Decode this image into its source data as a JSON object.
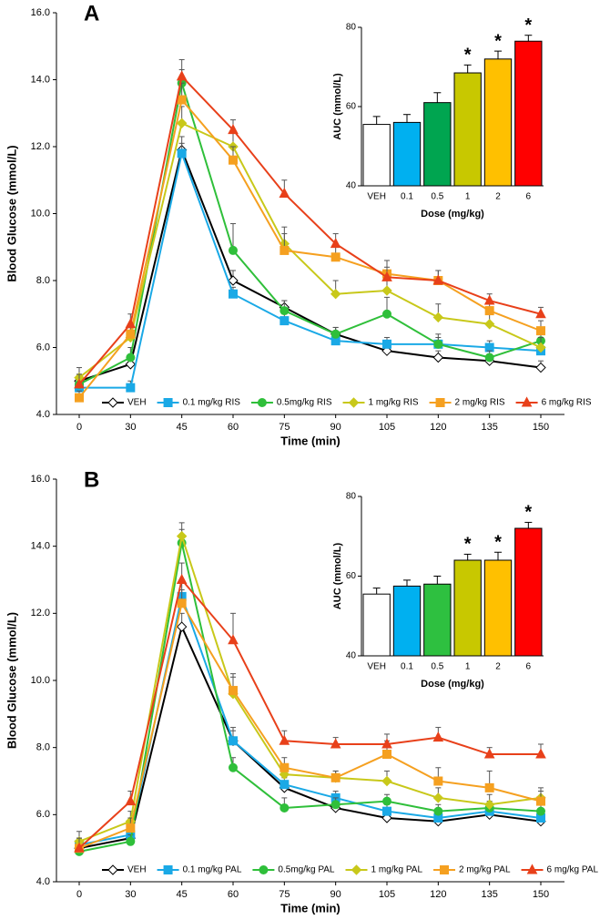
{
  "chart_data": [
    {
      "type": "line",
      "panel_label": "A",
      "ylabel": "Blood Glucose (mmol/L)",
      "xlabel": "Time (min)",
      "categories": [
        "0",
        "30",
        "45",
        "60",
        "75",
        "90",
        "105",
        "120",
        "135",
        "150"
      ],
      "ylim": [
        4,
        16
      ],
      "yticks": [
        {
          "value": 4,
          "label": "4.0"
        },
        {
          "value": 6,
          "label": "6.0"
        },
        {
          "value": 8,
          "label": "8.0"
        },
        {
          "value": 10,
          "label": "10.0"
        },
        {
          "value": 12,
          "label": "12.0"
        },
        {
          "value": 14,
          "label": "14.0"
        },
        {
          "value": 16,
          "label": "16.0"
        }
      ],
      "legend": "bottom",
      "series": [
        {
          "name": "VEH",
          "color": "#000000",
          "fill": "#ffffff",
          "marker": "diamond",
          "values": [
            5.0,
            5.5,
            11.9,
            8.0,
            7.2,
            6.4,
            5.9,
            5.7,
            5.6,
            5.4
          ],
          "errors": [
            0.2,
            0.2,
            0.4,
            0.3,
            0.2,
            0.2,
            0.2,
            0.2,
            0.2,
            0.2
          ]
        },
        {
          "name": "0.1 mg/kg RIS",
          "color": "#1aa9e6",
          "fill": "#1aa9e6",
          "marker": "square",
          "values": [
            4.8,
            4.8,
            11.8,
            7.6,
            6.8,
            6.2,
            6.1,
            6.1,
            6.0,
            5.9
          ],
          "errors": [
            0.2,
            0.2,
            0.3,
            0.2,
            0.2,
            0.2,
            0.2,
            0.2,
            0.2,
            0.2
          ]
        },
        {
          "name": "0.5mg/kg RIS",
          "color": "#2fbf3a",
          "fill": "#2fbf3a",
          "marker": "circle",
          "values": [
            4.9,
            5.7,
            13.9,
            8.9,
            7.1,
            6.4,
            7.0,
            6.1,
            5.7,
            6.2
          ],
          "errors": [
            0.2,
            0.3,
            0.4,
            0.8,
            0.3,
            0.2,
            0.5,
            0.3,
            0.2,
            0.2
          ]
        },
        {
          "name": "1 mg/kg RIS",
          "color": "#c8c81a",
          "fill": "#c8c81a",
          "marker": "diamond",
          "values": [
            5.1,
            6.3,
            12.7,
            12.0,
            9.1,
            7.6,
            7.7,
            6.9,
            6.7,
            6.0
          ],
          "errors": [
            0.3,
            0.3,
            0.5,
            0.5,
            0.5,
            0.4,
            0.4,
            0.4,
            0.3,
            0.3
          ]
        },
        {
          "name": "2 mg/kg RIS",
          "color": "#f5a020",
          "fill": "#f5a020",
          "marker": "square",
          "values": [
            4.5,
            6.4,
            13.4,
            11.6,
            8.9,
            8.7,
            8.2,
            8.0,
            7.1,
            6.5
          ],
          "errors": [
            0.2,
            0.3,
            0.5,
            0.4,
            0.5,
            0.3,
            0.4,
            0.3,
            0.3,
            0.3
          ]
        },
        {
          "name": "6 mg/kg RIS",
          "color": "#e8401a",
          "fill": "#e8401a",
          "marker": "triangle",
          "values": [
            4.9,
            6.7,
            14.1,
            12.5,
            10.6,
            9.1,
            8.1,
            8.0,
            7.4,
            7.0
          ],
          "errors": [
            0.3,
            0.3,
            0.5,
            0.3,
            0.4,
            0.3,
            0.3,
            0.3,
            0.2,
            0.2
          ]
        }
      ]
    },
    {
      "type": "bar",
      "ylabel": "AUC (mmol/L)",
      "xlabel": "Dose (mg/kg)",
      "categories": [
        "VEH",
        "0.1",
        "0.5",
        "1",
        "2",
        "6"
      ],
      "values": [
        55.5,
        56,
        61,
        68.5,
        72,
        76.5
      ],
      "errors": [
        2,
        2,
        2.5,
        2,
        2,
        1.5
      ],
      "colors": [
        "#ffffff",
        "#00b0f0",
        "#00a550",
        "#c8c800",
        "#ffc000",
        "#ff0000"
      ],
      "annotations": [
        null,
        null,
        null,
        "*",
        "*",
        "*"
      ],
      "ylim": [
        40,
        80
      ],
      "yticks": [
        40,
        60,
        80
      ]
    },
    {
      "type": "line",
      "panel_label": "B",
      "ylabel": "Blood Glucose (mmol/L)",
      "xlabel": "Time (min)",
      "categories": [
        "0",
        "30",
        "45",
        "60",
        "75",
        "90",
        "105",
        "120",
        "135",
        "150"
      ],
      "ylim": [
        4,
        16
      ],
      "yticks": [
        {
          "value": 4,
          "label": "4.0"
        },
        {
          "value": 6,
          "label": "6.0"
        },
        {
          "value": 8,
          "label": "8.0"
        },
        {
          "value": 10,
          "label": "10.0"
        },
        {
          "value": 12,
          "label": "12.0"
        },
        {
          "value": 14,
          "label": "14.0"
        },
        {
          "value": 16,
          "label": "16.0"
        }
      ],
      "legend": "bottom",
      "series": [
        {
          "name": "VEH",
          "color": "#000000",
          "fill": "#ffffff",
          "marker": "diamond",
          "values": [
            5.0,
            5.3,
            11.6,
            8.2,
            6.8,
            6.2,
            5.9,
            5.8,
            6.0,
            5.8
          ],
          "errors": [
            0.2,
            0.2,
            0.4,
            0.3,
            0.2,
            0.2,
            0.2,
            0.2,
            0.2,
            0.2
          ]
        },
        {
          "name": "0.1 mg/kg PAL",
          "color": "#1aa9e6",
          "fill": "#1aa9e6",
          "marker": "square",
          "values": [
            5.1,
            5.4,
            12.5,
            8.2,
            6.9,
            6.5,
            6.1,
            5.9,
            6.1,
            5.9
          ],
          "errors": [
            0.2,
            0.2,
            0.4,
            0.4,
            0.2,
            0.2,
            0.2,
            0.2,
            0.2,
            0.2
          ]
        },
        {
          "name": "0.5mg/kg PAL",
          "color": "#2fbf3a",
          "fill": "#2fbf3a",
          "marker": "circle",
          "values": [
            4.9,
            5.2,
            14.1,
            7.4,
            6.2,
            6.3,
            6.4,
            6.1,
            6.2,
            6.1
          ],
          "errors": [
            0.2,
            0.2,
            0.4,
            0.3,
            0.3,
            0.2,
            0.2,
            0.2,
            0.2,
            0.2
          ]
        },
        {
          "name": "1 mg/kg PAL",
          "color": "#c8c81a",
          "fill": "#c8c81a",
          "marker": "diamond",
          "values": [
            5.2,
            5.8,
            14.3,
            9.6,
            7.2,
            7.1,
            7.0,
            6.5,
            6.3,
            6.5
          ],
          "errors": [
            0.3,
            0.3,
            0.4,
            0.5,
            0.3,
            0.2,
            0.3,
            0.3,
            0.3,
            0.3
          ]
        },
        {
          "name": "2 mg/kg PAL",
          "color": "#f5a020",
          "fill": "#f5a020",
          "marker": "square",
          "values": [
            5.0,
            5.6,
            12.3,
            9.7,
            7.4,
            7.1,
            7.8,
            7.0,
            6.8,
            6.4
          ],
          "errors": [
            0.3,
            0.3,
            0.4,
            0.5,
            0.3,
            0.2,
            0.4,
            0.4,
            0.5,
            0.3
          ]
        },
        {
          "name": "6 mg/kg PAL",
          "color": "#e8401a",
          "fill": "#e8401a",
          "marker": "triangle",
          "values": [
            5.0,
            6.4,
            13.0,
            11.2,
            8.2,
            8.1,
            8.1,
            8.3,
            7.8,
            7.8
          ],
          "errors": [
            0.3,
            0.3,
            0.5,
            0.8,
            0.3,
            0.2,
            0.3,
            0.3,
            0.2,
            0.3
          ]
        }
      ]
    },
    {
      "type": "bar",
      "ylabel": "AUC (mmol/L)",
      "xlabel": "Dose (mg/kg)",
      "categories": [
        "VEH",
        "0.1",
        "0.5",
        "1",
        "2",
        "6"
      ],
      "values": [
        55.5,
        57.5,
        58,
        64,
        64,
        72
      ],
      "errors": [
        1.5,
        1.5,
        2,
        1.5,
        2,
        1.5
      ],
      "colors": [
        "#ffffff",
        "#00b0f0",
        "#2ec040",
        "#c8c800",
        "#ffc000",
        "#ff0000"
      ],
      "annotations": [
        null,
        null,
        null,
        "*",
        "*",
        "*"
      ],
      "ylim": [
        40,
        80
      ],
      "yticks": [
        40,
        60,
        80
      ]
    }
  ]
}
